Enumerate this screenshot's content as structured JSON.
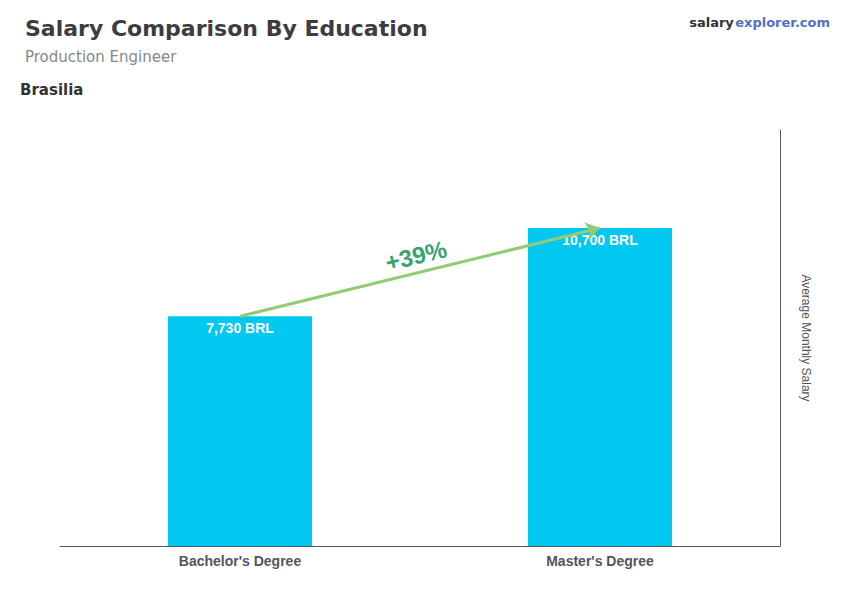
{
  "chart_data": {
    "type": "bar",
    "title": "Salary Comparison By Education",
    "subtitle": "Production Engineer",
    "ylabel": "Average Monthly Salary",
    "annotations": [
      "Brasilia",
      "salary",
      "explorer.com",
      "+39%"
    ],
    "categories": [
      "Bachelor's Degree",
      "Master's Degree"
    ],
    "values": [
      7730,
      10700
    ],
    "value_labels": [
      "7,730 BRL",
      "10,700 BRL"
    ],
    "data_labels": true,
    "color": "#00C8F0",
    "ylim": [
      0,
      14000
    ],
    "tick_labels": "x",
    "grid": false
  }
}
